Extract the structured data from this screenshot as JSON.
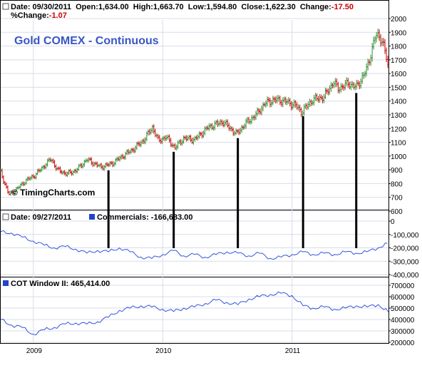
{
  "header": {
    "date_label": "Date: 09/30/2011",
    "open_label": "Open:",
    "open_value": "1,634.00",
    "high_label": "High:",
    "high_value": "1,663.70",
    "low_label": "Low:",
    "low_value": "1,594.80",
    "close_label": "Close:",
    "close_value": "1,622.30",
    "change_label": "Change:",
    "change_value": "-17.50",
    "pct_label": "%Change:",
    "pct_value": "-1.07"
  },
  "price_title": "Gold COMEX - Continuous",
  "watermark": "© TimingCharts.com",
  "cot_header": {
    "date_label": "Date: 09/27/2011",
    "series_label": "Commercials: -166,683.00"
  },
  "window_header": {
    "series_label": "COT Window II: 465,414.00"
  },
  "colors": {
    "up_bar": "#2e8b2e",
    "down_bar": "#cc0000",
    "line": "#3355dd",
    "title": "#3a56c5",
    "legend_square": "#2244cc"
  },
  "chart_data": [
    {
      "type": "ohlc",
      "name": "price",
      "title": "Gold COMEX - Continuous",
      "x_range": [
        "2008-10-01",
        "2011-09-30"
      ],
      "ylim": [
        600,
        2000
      ],
      "y_ticks": [
        600,
        700,
        800,
        900,
        1000,
        1100,
        1200,
        1300,
        1400,
        1500,
        1600,
        1700,
        1800,
        1900,
        2000
      ],
      "y_tick_labels": [
        "600",
        "700",
        "800",
        "900",
        "1000",
        "1100",
        "1200",
        "1300",
        "1400",
        "1500",
        "1600",
        "1700",
        "1800",
        "1900",
        "2000"
      ],
      "grid": true,
      "close_path": [
        [
          "2008-10-01",
          880
        ],
        [
          "2008-10-24",
          720
        ],
        [
          "2008-11-15",
          760
        ],
        [
          "2008-12-10",
          820
        ],
        [
          "2009-01-05",
          860
        ],
        [
          "2009-02-20",
          980
        ],
        [
          "2009-03-10",
          900
        ],
        [
          "2009-04-05",
          870
        ],
        [
          "2009-05-01",
          895
        ],
        [
          "2009-06-01",
          975
        ],
        [
          "2009-07-10",
          920
        ],
        [
          "2009-08-10",
          945
        ],
        [
          "2009-09-10",
          1000
        ],
        [
          "2009-10-10",
          1050
        ],
        [
          "2009-11-10",
          1120
        ],
        [
          "2009-12-03",
          1210
        ],
        [
          "2009-12-20",
          1110
        ],
        [
          "2010-01-10",
          1140
        ],
        [
          "2010-02-05",
          1060
        ],
        [
          "2010-03-01",
          1130
        ],
        [
          "2010-04-01",
          1120
        ],
        [
          "2010-05-10",
          1210
        ],
        [
          "2010-06-20",
          1250
        ],
        [
          "2010-07-28",
          1160
        ],
        [
          "2010-08-20",
          1230
        ],
        [
          "2010-09-25",
          1310
        ],
        [
          "2010-10-15",
          1380
        ],
        [
          "2010-11-10",
          1410
        ],
        [
          "2010-12-10",
          1400
        ],
        [
          "2011-01-10",
          1370
        ],
        [
          "2011-01-28",
          1320
        ],
        [
          "2011-02-28",
          1410
        ],
        [
          "2011-04-01",
          1430
        ],
        [
          "2011-04-28",
          1540
        ],
        [
          "2011-05-10",
          1490
        ],
        [
          "2011-06-10",
          1530
        ],
        [
          "2011-07-01",
          1500
        ],
        [
          "2011-07-29",
          1620
        ],
        [
          "2011-08-12",
          1750
        ],
        [
          "2011-08-22",
          1860
        ],
        [
          "2011-09-05",
          1880
        ],
        [
          "2011-09-19",
          1780
        ],
        [
          "2011-09-30",
          1622
        ]
      ]
    },
    {
      "type": "line",
      "name": "commercials",
      "series_name": "Commercials",
      "ylim": [
        -400000,
        0
      ],
      "y_ticks": [
        0,
        -100000,
        -200000,
        -300000,
        -400000
      ],
      "y_tick_labels": [
        "0",
        "-100,000",
        "-200,000",
        "-300,000",
        "-400,000"
      ],
      "grid": true,
      "x": [
        "2008-10-01",
        "2008-11-01",
        "2008-12-01",
        "2009-01-01",
        "2009-02-01",
        "2009-03-01",
        "2009-04-01",
        "2009-05-01",
        "2009-06-01",
        "2009-07-01",
        "2009-08-01",
        "2009-09-01",
        "2009-10-01",
        "2009-11-01",
        "2009-12-01",
        "2010-01-01",
        "2010-02-01",
        "2010-03-01",
        "2010-04-01",
        "2010-05-01",
        "2010-06-01",
        "2010-07-01",
        "2010-08-01",
        "2010-09-01",
        "2010-10-01",
        "2010-11-01",
        "2010-12-01",
        "2011-01-01",
        "2011-02-01",
        "2011-03-01",
        "2011-04-01",
        "2011-05-01",
        "2011-06-01",
        "2011-07-01",
        "2011-08-01",
        "2011-09-01",
        "2011-09-27"
      ],
      "values": [
        -80000,
        -90000,
        -120000,
        -150000,
        -180000,
        -200000,
        -190000,
        -210000,
        -240000,
        -220000,
        -230000,
        -200000,
        -230000,
        -270000,
        -280000,
        -250000,
        -220000,
        -260000,
        -250000,
        -270000,
        -250000,
        -230000,
        -240000,
        -260000,
        -240000,
        -280000,
        -270000,
        -250000,
        -230000,
        -250000,
        -240000,
        -250000,
        -230000,
        -240000,
        -230000,
        -200000,
        -166683
      ]
    },
    {
      "type": "line",
      "name": "cot-window",
      "series_name": "COT Window II",
      "ylim": [
        200000,
        700000
      ],
      "y_ticks": [
        200000,
        300000,
        400000,
        500000,
        600000,
        700000
      ],
      "y_tick_labels": [
        "200000",
        "300000",
        "400000",
        "500000",
        "600000",
        "700000"
      ],
      "grid": true,
      "x": [
        "2008-10-01",
        "2008-11-01",
        "2008-12-01",
        "2009-01-01",
        "2009-02-01",
        "2009-03-01",
        "2009-04-01",
        "2009-05-01",
        "2009-06-01",
        "2009-07-01",
        "2009-08-01",
        "2009-09-01",
        "2009-10-01",
        "2009-11-01",
        "2009-12-01",
        "2010-01-01",
        "2010-02-01",
        "2010-03-01",
        "2010-04-01",
        "2010-05-01",
        "2010-06-01",
        "2010-07-01",
        "2010-08-01",
        "2010-09-01",
        "2010-10-01",
        "2010-11-01",
        "2010-12-01",
        "2011-01-01",
        "2011-02-01",
        "2011-03-01",
        "2011-04-01",
        "2011-05-01",
        "2011-06-01",
        "2011-07-01",
        "2011-08-01",
        "2011-09-01",
        "2011-09-30"
      ],
      "values": [
        400000,
        350000,
        330000,
        270000,
        310000,
        330000,
        360000,
        370000,
        360000,
        380000,
        420000,
        480000,
        500000,
        520000,
        510000,
        490000,
        470000,
        500000,
        510000,
        540000,
        570000,
        550000,
        530000,
        580000,
        600000,
        620000,
        630000,
        610000,
        520000,
        500000,
        510000,
        490000,
        500000,
        520000,
        510000,
        530000,
        465414
      ]
    }
  ],
  "x_axis": {
    "labels": [
      "2009",
      "2010",
      "2011"
    ],
    "dates": [
      "2009-01-01",
      "2010-01-01",
      "2011-01-01"
    ]
  },
  "cycle_markers": {
    "dates": [
      "2009-08-01",
      "2010-02-01",
      "2010-08-01",
      "2011-02-01",
      "2011-07-01"
    ]
  }
}
